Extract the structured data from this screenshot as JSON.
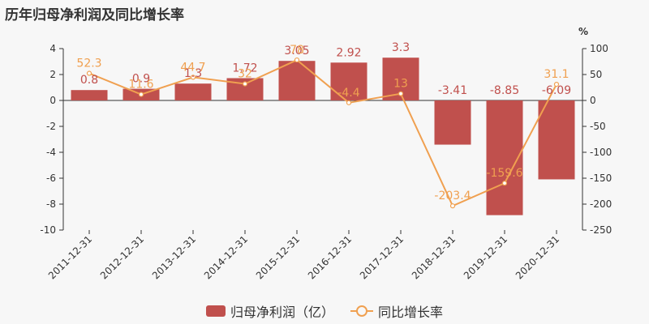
{
  "title": "历年归母净利润及同比增长率",
  "colors": {
    "bar": "#c0504d",
    "line": "#f0a050",
    "bar_label": "#c0504d",
    "line_label": "#f0a050"
  },
  "chart_data": {
    "type": "bar",
    "categories": [
      "2011-12-31",
      "2012-12-31",
      "2013-12-31",
      "2014-12-31",
      "2015-12-31",
      "2016-12-31",
      "2017-12-31",
      "2018-12-31",
      "2019-12-31",
      "2020-12-31"
    ],
    "series": [
      {
        "name": "归母净利润（亿）",
        "type": "bar",
        "axis": "left",
        "values": [
          0.8,
          0.9,
          1.3,
          1.72,
          3.05,
          2.92,
          3.3,
          -3.41,
          -8.85,
          -6.09
        ],
        "labels": [
          "0.8",
          "0.9",
          "1.3",
          "1.72",
          "3.05",
          "2.92",
          "3.3",
          "-3.41",
          "-8.85",
          "-6.09"
        ]
      },
      {
        "name": "同比增长率",
        "type": "line",
        "axis": "right",
        "values": [
          52.3,
          11.6,
          44.7,
          32,
          78,
          -4.4,
          13,
          -203.4,
          -159.6,
          31.1
        ],
        "labels": [
          "52.3",
          "11.6",
          "44.7",
          "32",
          "78",
          "-4.4",
          "13",
          "-203.4",
          "-159.6",
          "31.1"
        ]
      }
    ],
    "y_left": {
      "ylim": [
        -10,
        4
      ],
      "ticks": [
        "4",
        "2",
        "0",
        "-2",
        "-4",
        "-6",
        "-8",
        "-10"
      ]
    },
    "y_right": {
      "label": "%",
      "ylim": [
        -250,
        100
      ],
      "ticks": [
        "100",
        "50",
        "0",
        "-50",
        "-100",
        "-150",
        "-200",
        "-250"
      ]
    },
    "grid": false,
    "legend": "bottom"
  }
}
